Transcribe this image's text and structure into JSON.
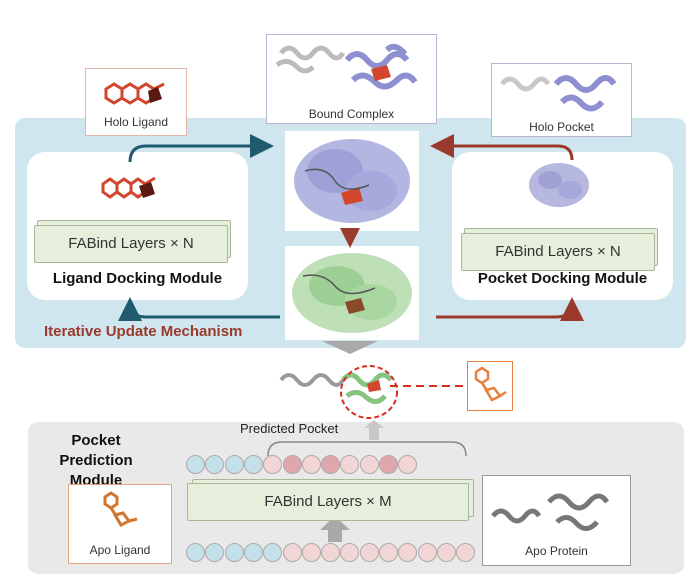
{
  "labels": {
    "holo_ligand": "Holo Ligand",
    "bound_complex": "Bound Complex",
    "holo_pocket": "Holo Pocket",
    "ligand_layers": "FABind Layers × N",
    "ligand_module": "Ligand Docking Module",
    "pocket_layers": "FABind Layers × N",
    "pocket_module": "Pocket Docking Module",
    "iterative": "Iterative Update Mechanism",
    "predicted_pocket": "Predicted Pocket",
    "pocket_prediction_line1": "Pocket Prediction",
    "pocket_prediction_line2": "Module",
    "m_layers": "FABind Layers × M",
    "apo_ligand": "Apo Ligand",
    "apo_protein": "Apo Protein"
  },
  "colors": {
    "blue_panel": "#cfe6ee",
    "grey_panel": "#e9e9e9",
    "arrow_blue": "#1f5a6e",
    "arrow_red": "#9b3a2c",
    "layer_green": "#e6efdc",
    "dot_blue": "#c4e1ea",
    "dot_pink": "#f2d6d6",
    "dot_red": "#dfa7ad",
    "protein_blue": "#8e8fd0",
    "protein_green": "#86c47f",
    "ligand_red": "#d2462e",
    "ligand_orange": "#e6803a"
  },
  "sequences": {
    "top_row": [
      "blue",
      "blue",
      "blue",
      "blue",
      "pink",
      "red",
      "pink",
      "red",
      "pink",
      "pink",
      "red",
      "pink"
    ],
    "bottom_row": [
      "blue",
      "blue",
      "blue",
      "blue",
      "blue",
      "pink",
      "pink",
      "pink",
      "pink",
      "pink",
      "pink",
      "pink",
      "pink",
      "pink",
      "pink"
    ]
  }
}
